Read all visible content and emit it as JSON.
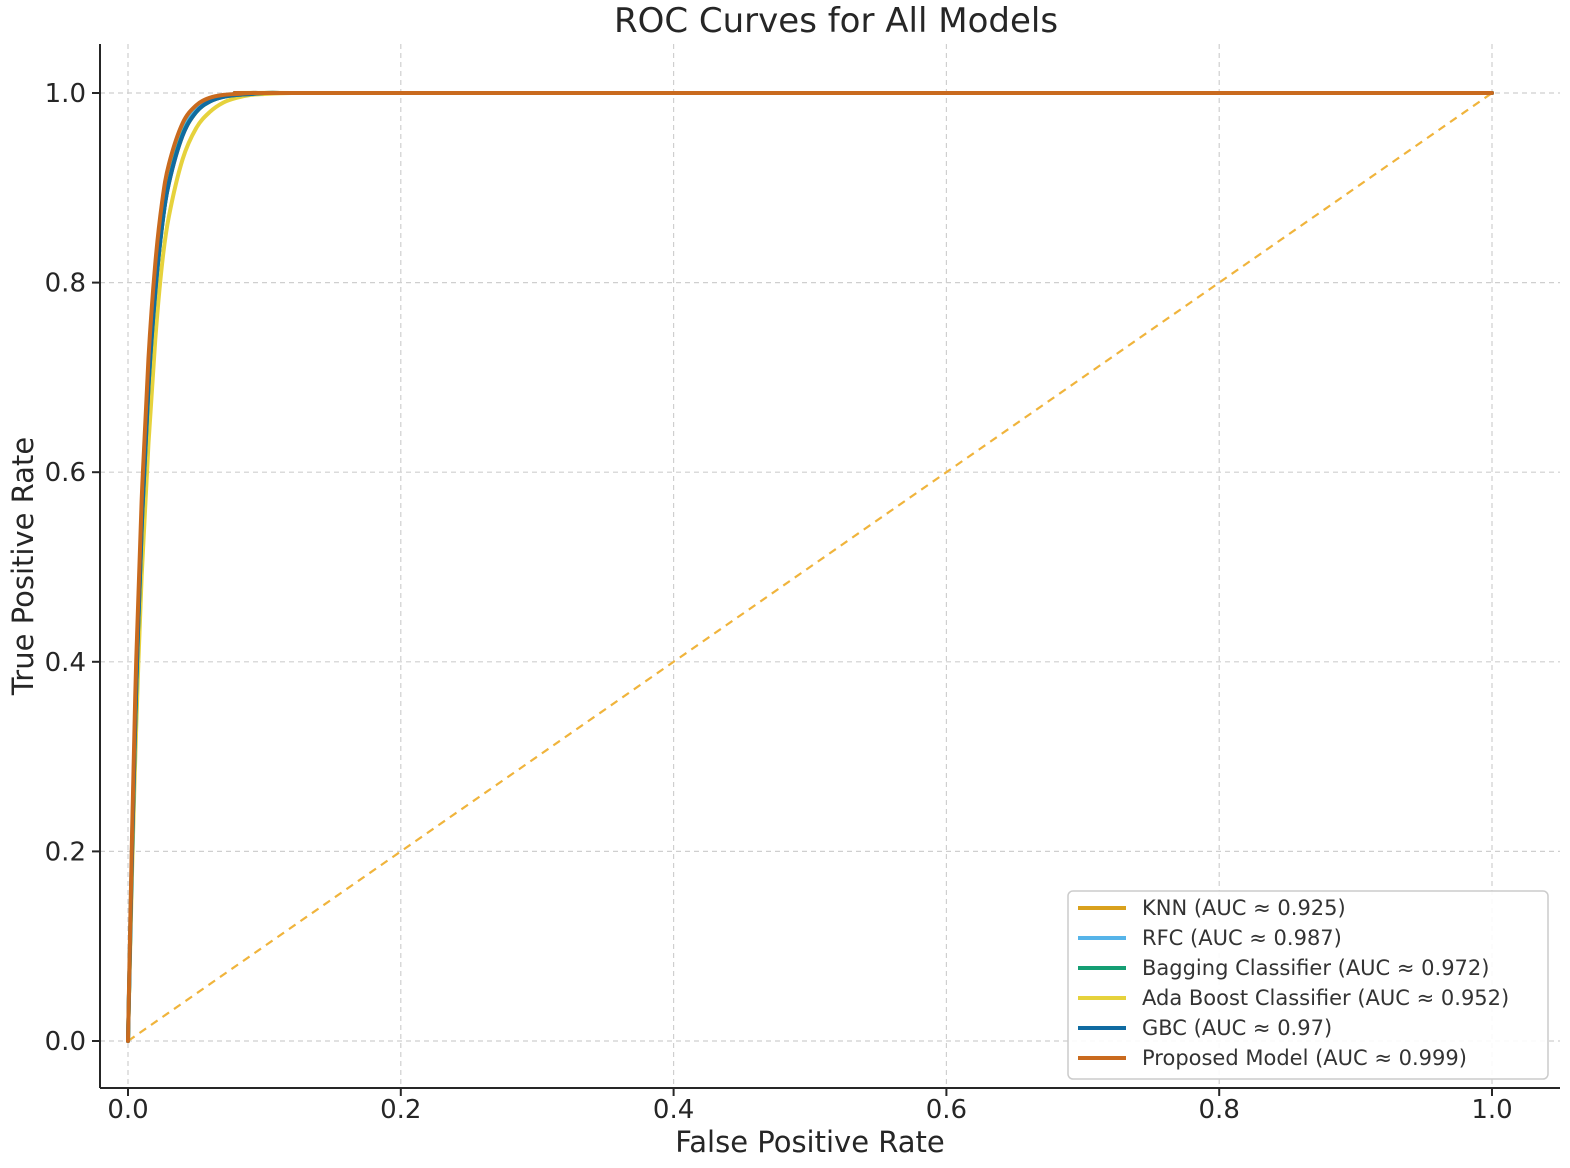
{
  "chart_data": {
    "type": "line",
    "title": "ROC Curves for All Models",
    "xlabel": "False Positive Rate",
    "ylabel": "True Positive Rate",
    "xlim": [
      -0.02,
      1.05
    ],
    "ylim": [
      -0.05,
      1.05
    ],
    "x_ticks": [
      "0.0",
      "0.2",
      "0.4",
      "0.6",
      "0.8",
      "1.0"
    ],
    "y_ticks": [
      "0.0",
      "0.2",
      "0.4",
      "0.6",
      "0.8",
      "1.0"
    ],
    "grid": true,
    "legend_position": "bottom-right",
    "series": [
      {
        "name": "KNN (AUC ≈ 0.925)",
        "color": "#D9A11D",
        "x": [
          0.0,
          0.003,
          0.006,
          0.01,
          0.015,
          0.02,
          0.025,
          0.03,
          0.04,
          0.05,
          0.06,
          0.07,
          0.08,
          0.09,
          0.1,
          0.12,
          0.15,
          1.0
        ],
        "y": [
          0.0,
          0.2,
          0.37,
          0.54,
          0.69,
          0.79,
          0.86,
          0.905,
          0.955,
          0.98,
          0.991,
          0.996,
          0.998,
          0.999,
          1.0,
          1.0,
          1.0,
          1.0
        ]
      },
      {
        "name": "RFC (AUC ≈ 0.987)",
        "color": "#56B4E9",
        "x": [
          0.0,
          0.003,
          0.006,
          0.01,
          0.015,
          0.02,
          0.025,
          0.03,
          0.04,
          0.05,
          0.06,
          0.07,
          0.08,
          0.09,
          0.1,
          0.12,
          0.15,
          1.0
        ],
        "y": [
          0.0,
          0.21,
          0.38,
          0.55,
          0.7,
          0.8,
          0.87,
          0.912,
          0.96,
          0.982,
          0.992,
          0.997,
          0.999,
          1.0,
          1.0,
          1.0,
          1.0,
          1.0
        ]
      },
      {
        "name": "Bagging Classifier (AUC ≈ 0.972)",
        "color": "#159E73",
        "x": [
          0.0,
          0.003,
          0.006,
          0.01,
          0.015,
          0.02,
          0.025,
          0.03,
          0.04,
          0.05,
          0.06,
          0.07,
          0.08,
          0.09,
          0.1,
          0.12,
          0.15,
          1.0
        ],
        "y": [
          0.0,
          0.2,
          0.37,
          0.54,
          0.69,
          0.79,
          0.86,
          0.906,
          0.956,
          0.98,
          0.991,
          0.996,
          0.998,
          0.999,
          1.0,
          1.0,
          1.0,
          1.0
        ]
      },
      {
        "name": "Ada Boost Classifier (AUC ≈ 0.952)",
        "color": "#E6D23C",
        "x": [
          0.0,
          0.003,
          0.006,
          0.01,
          0.015,
          0.02,
          0.025,
          0.03,
          0.04,
          0.05,
          0.06,
          0.07,
          0.08,
          0.09,
          0.1,
          0.12,
          0.15,
          1.0
        ],
        "y": [
          0.0,
          0.18,
          0.33,
          0.49,
          0.63,
          0.74,
          0.82,
          0.87,
          0.93,
          0.963,
          0.98,
          0.99,
          0.995,
          0.998,
          0.999,
          1.0,
          1.0,
          1.0
        ]
      },
      {
        "name": "GBC (AUC ≈ 0.97)",
        "color": "#0F6BA1",
        "x": [
          0.0,
          0.003,
          0.006,
          0.01,
          0.015,
          0.02,
          0.025,
          0.03,
          0.04,
          0.05,
          0.06,
          0.07,
          0.08,
          0.09,
          0.1,
          0.12,
          0.15,
          1.0
        ],
        "y": [
          0.0,
          0.2,
          0.37,
          0.54,
          0.69,
          0.79,
          0.86,
          0.905,
          0.955,
          0.98,
          0.991,
          0.996,
          0.998,
          0.999,
          1.0,
          1.0,
          1.0,
          1.0
        ]
      },
      {
        "name": "Proposed Model (AUC ≈ 0.999)",
        "color": "#C96A1E",
        "x": [
          0.0,
          0.003,
          0.006,
          0.01,
          0.015,
          0.02,
          0.025,
          0.03,
          0.04,
          0.05,
          0.06,
          0.07,
          0.08,
          0.09,
          0.1,
          0.12,
          0.15,
          1.0
        ],
        "y": [
          0.0,
          0.22,
          0.4,
          0.57,
          0.72,
          0.82,
          0.885,
          0.925,
          0.968,
          0.987,
          0.995,
          0.998,
          0.999,
          1.0,
          1.0,
          1.0,
          1.0,
          1.0
        ]
      }
    ],
    "reference_line": {
      "color": "#F0B43C",
      "style": "dashed",
      "x": [
        0.0,
        1.0
      ],
      "y": [
        0.0,
        1.0
      ]
    }
  }
}
